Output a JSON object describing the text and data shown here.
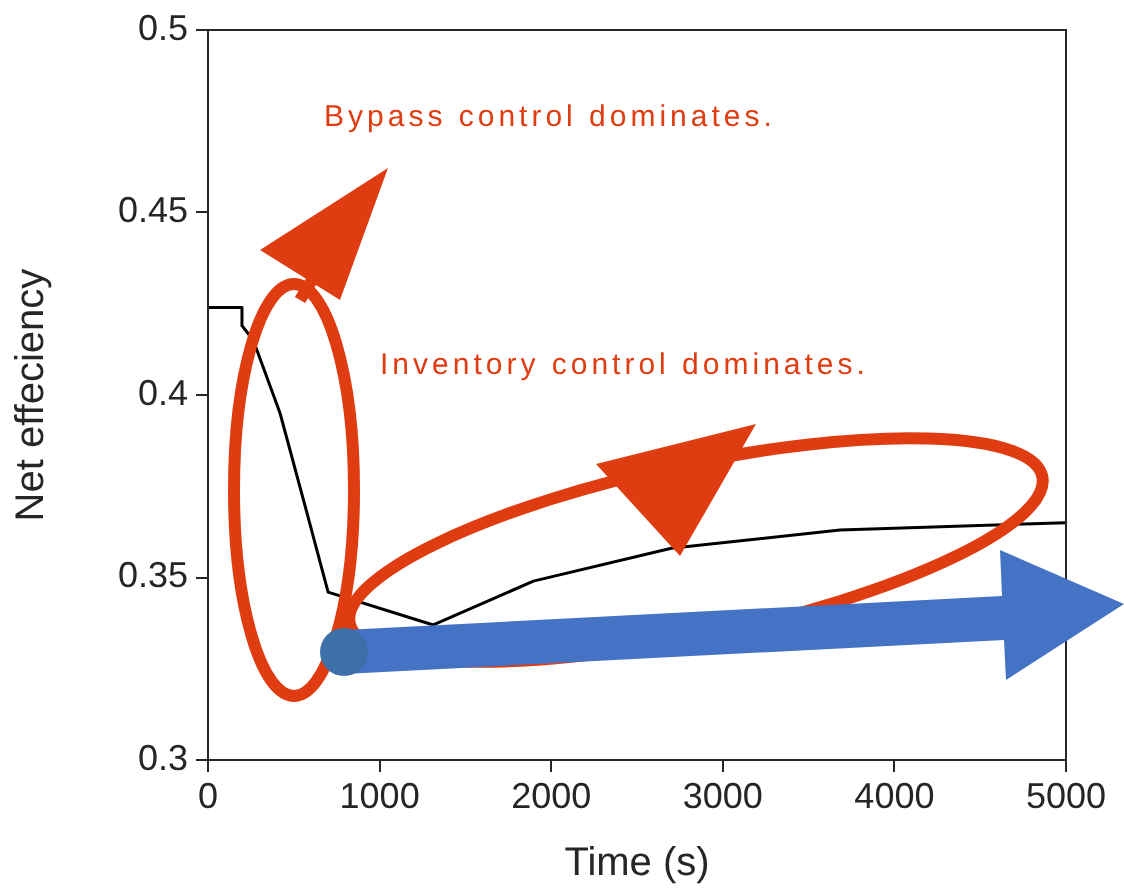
{
  "chart_data": {
    "type": "line",
    "xlabel": "Time (s)",
    "ylabel": "Net effeciency",
    "xlim": [
      0,
      5000
    ],
    "xticks": [
      0,
      1000,
      2000,
      3000,
      4000,
      5000
    ],
    "ylim": [
      0.3,
      0.5
    ],
    "yticks": [
      0.3,
      0.35,
      0.4,
      0.45,
      0.5
    ],
    "marker": "none",
    "line_style": "solid",
    "series": [
      {
        "color": "#000000",
        "x": [
          0,
          198,
          198,
          264,
          420,
          575,
          700,
          1313,
          1896,
          2700,
          3683,
          5000
        ],
        "values": [
          0.424,
          0.424,
          0.419,
          0.415,
          0.395,
          0.368,
          0.346,
          0.337,
          0.349,
          0.358,
          0.363,
          0.365
        ]
      }
    ],
    "annotations": [
      "Bypass control dominates.",
      "Inventory control dominates."
    ]
  }
}
